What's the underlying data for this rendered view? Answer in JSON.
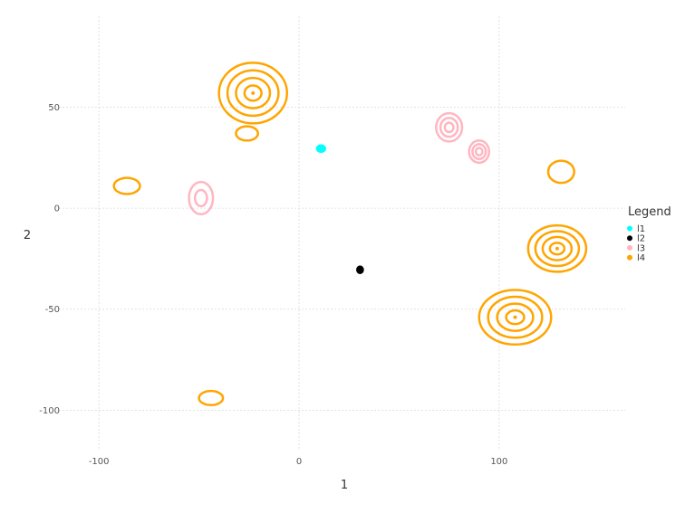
{
  "chart_data": {
    "type": "contour",
    "xlabel": "1",
    "ylabel": "2",
    "xlim": [
      -120,
      163
    ],
    "ylim": [
      -120,
      95
    ],
    "x_ticks": [
      -100,
      0,
      100
    ],
    "y_ticks": [
      -100,
      -50,
      0,
      50
    ],
    "grid": true,
    "legend": {
      "title": "Legend",
      "position": "right"
    },
    "series": [
      {
        "name": "l1",
        "color": "#00ffff",
        "clusters": [
          {
            "cx": 11,
            "cy": 29.5,
            "rx": 2,
            "ry": 1.6,
            "levels": 1
          }
        ]
      },
      {
        "name": "l2",
        "color": "#000000",
        "clusters": [
          {
            "cx": 30.5,
            "cy": -30.5,
            "rx": 1.4,
            "ry": 1.6,
            "levels": 1
          }
        ]
      },
      {
        "name": "l3",
        "color": "#ffb6c1",
        "clusters": [
          {
            "cx": 75,
            "cy": 40,
            "rx": 6.5,
            "ry": 7,
            "levels": 3
          },
          {
            "cx": 90,
            "cy": 28,
            "rx": 5,
            "ry": 5.5,
            "levels": 3
          },
          {
            "cx": -49,
            "cy": 5,
            "rx": 6,
            "ry": 8,
            "levels": 2
          }
        ]
      },
      {
        "name": "l4",
        "color": "#ffa500",
        "clusters": [
          {
            "cx": -23,
            "cy": 57,
            "rx": 17,
            "ry": 15,
            "levels": 4
          },
          {
            "cx": -26,
            "cy": 37,
            "rx": 5.5,
            "ry": 3.5,
            "levels": 1
          },
          {
            "cx": -86,
            "cy": 11,
            "rx": 6.5,
            "ry": 4,
            "levels": 1
          },
          {
            "cx": 131,
            "cy": 18,
            "rx": 6.5,
            "ry": 5.5,
            "levels": 1
          },
          {
            "cx": 129,
            "cy": -20,
            "rx": 14.5,
            "ry": 11.5,
            "levels": 4
          },
          {
            "cx": 108,
            "cy": -54,
            "rx": 18,
            "ry": 13.5,
            "levels": 4
          },
          {
            "cx": -44,
            "cy": -94,
            "rx": 6,
            "ry": 3.5,
            "levels": 1
          }
        ]
      }
    ]
  }
}
